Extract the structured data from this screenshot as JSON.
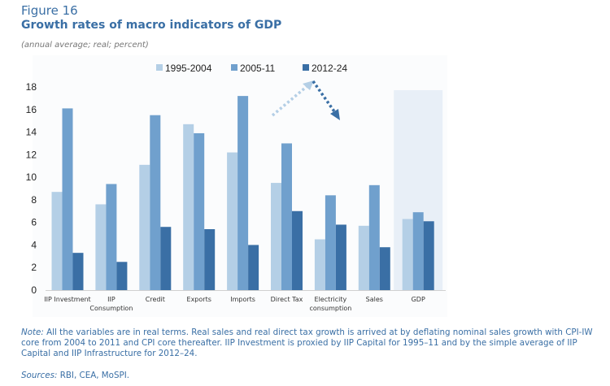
{
  "figure": {
    "label": "Figure 16",
    "title": "Growth rates of macro indicators of GDP",
    "subtitle": "(annual average; real; percent)",
    "note_prefix": "Note:",
    "note_text": " All the variables are in real terms. Real sales and real direct tax growth is arrived at by deflating nominal sales growth with CPI-IW core from 2004 to 2011 and CPI core thereafter. IIP Investment is proxied by IIP Capital for 1995–11 and by the simple average of IIP Capital and IIP Infrastructure for 2012–24.",
    "sources_prefix": "Sources:",
    "sources_text": " RBI, CEA, MoSPI."
  },
  "colors": {
    "series_1": "#b4cfe6",
    "series_2": "#70a0cd",
    "series_3": "#3a6fa5",
    "highlight_bg": "#e8eff7",
    "plot_bg": "#fbfcfd",
    "axis": "#d0d0d0",
    "title": "#3a6fa5"
  },
  "chart_data": {
    "type": "bar",
    "title": "Growth rates of macro indicators of GDP",
    "subtitle": "(annual average; real; percent)",
    "xlabel": "",
    "ylabel": "",
    "ylim": [
      0,
      18
    ],
    "yticks": [
      0,
      2,
      4,
      6,
      8,
      10,
      12,
      14,
      16,
      18
    ],
    "grid": false,
    "legend_position": "top-center",
    "categories": [
      [
        "IIP Investment"
      ],
      [
        "IIP",
        "Consumption"
      ],
      [
        "Credit"
      ],
      [
        "Exports"
      ],
      [
        "Imports"
      ],
      [
        "Direct Tax"
      ],
      [
        "Electricity",
        "consumption"
      ],
      [
        "Sales"
      ],
      [
        "GDP"
      ]
    ],
    "series": [
      {
        "name": "1995-2004",
        "values": [
          8.7,
          7.6,
          11.1,
          14.7,
          12.2,
          9.5,
          4.5,
          5.7,
          6.3
        ]
      },
      {
        "name": "2005-11",
        "values": [
          16.1,
          9.4,
          15.5,
          13.9,
          17.2,
          13.0,
          8.4,
          9.3,
          6.9
        ]
      },
      {
        "name": "2012-24",
        "values": [
          3.3,
          2.5,
          5.6,
          5.4,
          4.0,
          7.0,
          5.8,
          3.8,
          6.1
        ]
      }
    ],
    "highlighted_category": "GDP",
    "annotations": [
      {
        "type": "arrow",
        "style": "dotted",
        "direction": "up",
        "meaning": "rise from 1995-2004 to 2005-11"
      },
      {
        "type": "arrow",
        "style": "dotted",
        "direction": "down",
        "meaning": "fall from 2005-11 to 2012-24"
      }
    ]
  }
}
